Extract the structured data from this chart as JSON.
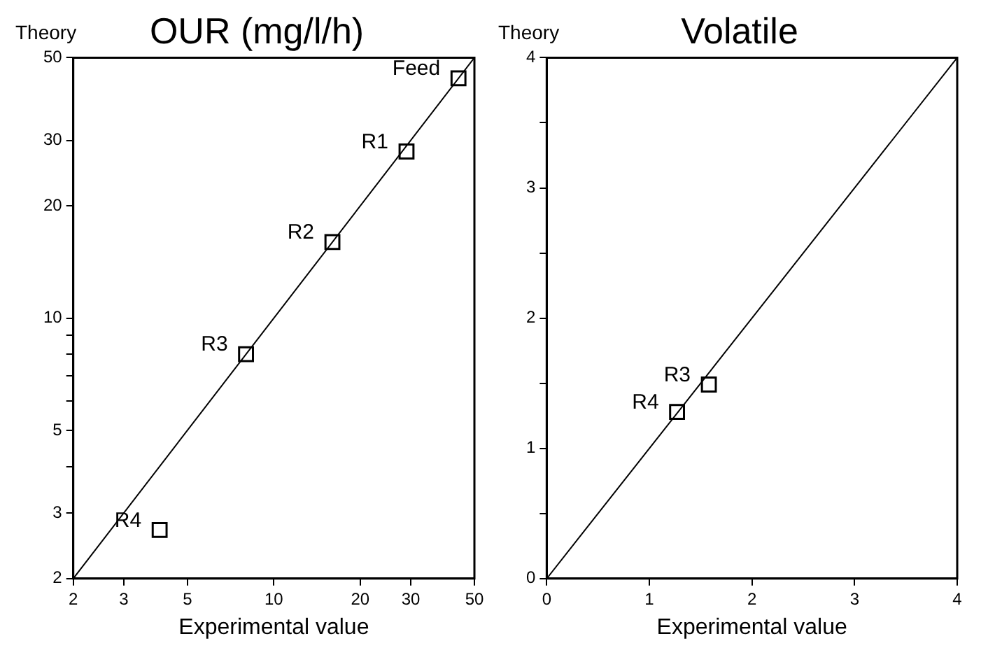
{
  "chart_data": [
    {
      "type": "scatter",
      "title": "OUR (mg/l/h)",
      "xlabel": "Experimental value",
      "ylabel": "Theory",
      "log": "xy",
      "grid": false,
      "legend": false,
      "xlim": [
        2,
        50
      ],
      "ylim": [
        2,
        50
      ],
      "xticks": [
        2,
        3,
        5,
        10,
        20,
        30,
        50
      ],
      "yticks": [
        2,
        3,
        {
          "value": 4,
          "label": null
        },
        5,
        {
          "value": 6,
          "label": null
        },
        {
          "value": 7,
          "label": null
        },
        {
          "value": 8,
          "label": null
        },
        {
          "value": 9,
          "label": null
        },
        10,
        20,
        30,
        50
      ],
      "series": [
        {
          "color": "#000000",
          "marker": "square",
          "x": [
            44,
            29,
            16,
            8,
            4
          ],
          "values": [
            44,
            28,
            16,
            8,
            2.7
          ]
        },
        {
          "type": "line",
          "color": "#000000",
          "marker": "none",
          "x": [
            2,
            50
          ],
          "values": [
            2,
            50
          ]
        }
      ],
      "annotations": [
        {
          "text": "Feed",
          "x": 44,
          "y": 44
        },
        {
          "text": "R1",
          "x": 29,
          "y": 28
        },
        {
          "text": "R2",
          "x": 16,
          "y": 16
        },
        {
          "text": "R3",
          "x": 8,
          "y": 8
        },
        {
          "text": "R4",
          "x": 4,
          "y": 2.7
        }
      ]
    },
    {
      "type": "scatter",
      "title": "Volatile",
      "xlabel": "Experimental value",
      "ylabel": "Theory",
      "grid": false,
      "legend": false,
      "xlim": [
        0,
        4
      ],
      "ylim": [
        0,
        4
      ],
      "xticks": [
        0,
        1,
        2,
        3,
        4
      ],
      "yticks": [
        0,
        {
          "value": 0.5,
          "label": null
        },
        1,
        {
          "value": 1.5,
          "label": null
        },
        2,
        {
          "value": 2.5,
          "label": null
        },
        3,
        {
          "value": 3.5,
          "label": null
        },
        4
      ],
      "series": [
        {
          "color": "#000000",
          "marker": "square",
          "x": [
            1.58,
            1.27
          ],
          "values": [
            1.49,
            1.28
          ]
        },
        {
          "type": "line",
          "color": "#000000",
          "marker": "none",
          "x": [
            0,
            4
          ],
          "values": [
            0,
            4
          ]
        }
      ],
      "annotations": [
        {
          "text": "R3",
          "x": 1.58,
          "y": 1.49
        },
        {
          "text": "R4",
          "x": 1.27,
          "y": 1.28
        }
      ]
    }
  ]
}
